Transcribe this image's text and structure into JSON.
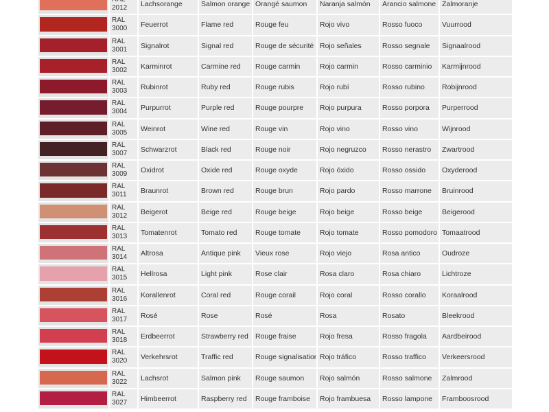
{
  "rows": [
    {
      "prefix": "RAL",
      "code": "2012",
      "color": "#e0705a",
      "de": "Lachsorange",
      "en": "Salmon orange",
      "fr": "Orangé saumon",
      "es": "Naranja salmón",
      "it": "Arancio salmone",
      "nl": "Zalmoranje"
    },
    {
      "prefix": "RAL",
      "code": "3000",
      "color": "#b1261f",
      "de": "Feuerrot",
      "en": "Flame red",
      "fr": "Rouge feu",
      "es": "Rojo vivo",
      "it": "Rosso fuoco",
      "nl": "Vuurrood"
    },
    {
      "prefix": "RAL",
      "code": "3001",
      "color": "#a4202a",
      "de": "Signalrot",
      "en": "Signal red",
      "fr": "Rouge de sécurité",
      "es": "Rojo señales",
      "it": "Rosso segnale",
      "nl": "Signaalrood"
    },
    {
      "prefix": "RAL",
      "code": "3002",
      "color": "#a7202a",
      "de": "Karminrot",
      "en": "Carmine red",
      "fr": "Rouge carmin",
      "es": "Rojo carmin",
      "it": "Rosso carminio",
      "nl": "Karmijnrood"
    },
    {
      "prefix": "RAL",
      "code": "3003",
      "color": "#8c1a2a",
      "de": "Rubinrot",
      "en": "Ruby red",
      "fr": "Rouge rubis",
      "es": "Rojo rubí",
      "it": "Rosso rubino",
      "nl": "Robijnrood"
    },
    {
      "prefix": "RAL",
      "code": "3004",
      "color": "#751c2e",
      "de": "Purpurrot",
      "en": "Purple red",
      "fr": "Rouge pourpre",
      "es": "Rojo purpura",
      "it": "Rosso porpora",
      "nl": "Purperrood"
    },
    {
      "prefix": "RAL",
      "code": "3005",
      "color": "#5e1f28",
      "de": "Weinrot",
      "en": "Wine red",
      "fr": "Rouge vin",
      "es": "Rojo vino",
      "it": "Rosso vino",
      "nl": "Wijnrood"
    },
    {
      "prefix": "RAL",
      "code": "3007",
      "color": "#432124",
      "de": "Schwarzrot",
      "en": "Black red",
      "fr": "Rouge noir",
      "es": "Rojo negruzco",
      "it": "Rosso nerastro",
      "nl": "Zwartrood"
    },
    {
      "prefix": "RAL",
      "code": "3009",
      "color": "#6d3233",
      "de": "Oxidrot",
      "en": "Oxide red",
      "fr": "Rouge oxyde",
      "es": "Rojo óxido",
      "it": "Rosso ossido",
      "nl": "Oxyderood"
    },
    {
      "prefix": "RAL",
      "code": "3011",
      "color": "#7b2a2a",
      "de": "Braunrot",
      "en": "Brown red",
      "fr": "Rouge brun",
      "es": "Rojo pardo",
      "it": "Rosso marrone",
      "nl": "Bruinrood"
    },
    {
      "prefix": "RAL",
      "code": "3012",
      "color": "#d09074",
      "de": "Beigerot",
      "en": "Beige red",
      "fr": "Rouge beige",
      "es": "Rojo beige",
      "it": "Rosso beige",
      "nl": "Beigerood"
    },
    {
      "prefix": "RAL",
      "code": "3013",
      "color": "#9d3030",
      "de": "Tomatenrot",
      "en": "Tomato red",
      "fr": "Rouge tomate",
      "es": "Rojo tomate",
      "it": "Rosso pomodoro",
      "nl": "Tomaatrood"
    },
    {
      "prefix": "RAL",
      "code": "3014",
      "color": "#d07378",
      "de": "Altrosa",
      "en": "Antique pink",
      "fr": "Vieux rose",
      "es": "Rojo viejo",
      "it": "Rosa antico",
      "nl": "Oudroze"
    },
    {
      "prefix": "RAL",
      "code": "3015",
      "color": "#e6a2ac",
      "de": "Hellrosa",
      "en": "Light pink",
      "fr": "Rose clair",
      "es": "Rosa claro",
      "it": "Rosa chiaro",
      "nl": "Lichtroze"
    },
    {
      "prefix": "RAL",
      "code": "3016",
      "color": "#ac4035",
      "de": "Korallenrot",
      "en": "Coral red",
      "fr": "Rouge corail",
      "es": "Rojo coral",
      "it": "Rosso corallo",
      "nl": "Koraalrood"
    },
    {
      "prefix": "RAL",
      "code": "3017",
      "color": "#d6545e",
      "de": "Rosé",
      "en": "Rose",
      "fr": "Rosé",
      "es": "Rosa",
      "it": "Rosato",
      "nl": "Bleekrood"
    },
    {
      "prefix": "RAL",
      "code": "3018",
      "color": "#d23f50",
      "de": "Erdbeerrot",
      "en": "Strawberry red",
      "fr": "Rouge fraise",
      "es": "Rojo fresa",
      "it": "Rosso fragola",
      "nl": "Aardbeirood"
    },
    {
      "prefix": "RAL",
      "code": "3020",
      "color": "#c4121b",
      "de": "Verkehrsrot",
      "en": "Traffic red",
      "fr": "Rouge signalisation",
      "es": "Rojo tráfico",
      "it": "Rosso traffico",
      "nl": "Verkeersrood"
    },
    {
      "prefix": "RAL",
      "code": "3022",
      "color": "#d5684f",
      "de": "Lachsrot",
      "en": "Salmon pink",
      "fr": "Rouge saumon",
      "es": "Rojo salmón",
      "it": "Rosso salmone",
      "nl": "Zalmrood"
    },
    {
      "prefix": "RAL",
      "code": "3027",
      "color": "#b31f43",
      "de": "Himbeerrot",
      "en": "Raspberry red",
      "fr": "Rouge framboise",
      "es": "Rojo frambuesa",
      "it": "Rosso lampone",
      "nl": "Framboosrood"
    }
  ]
}
